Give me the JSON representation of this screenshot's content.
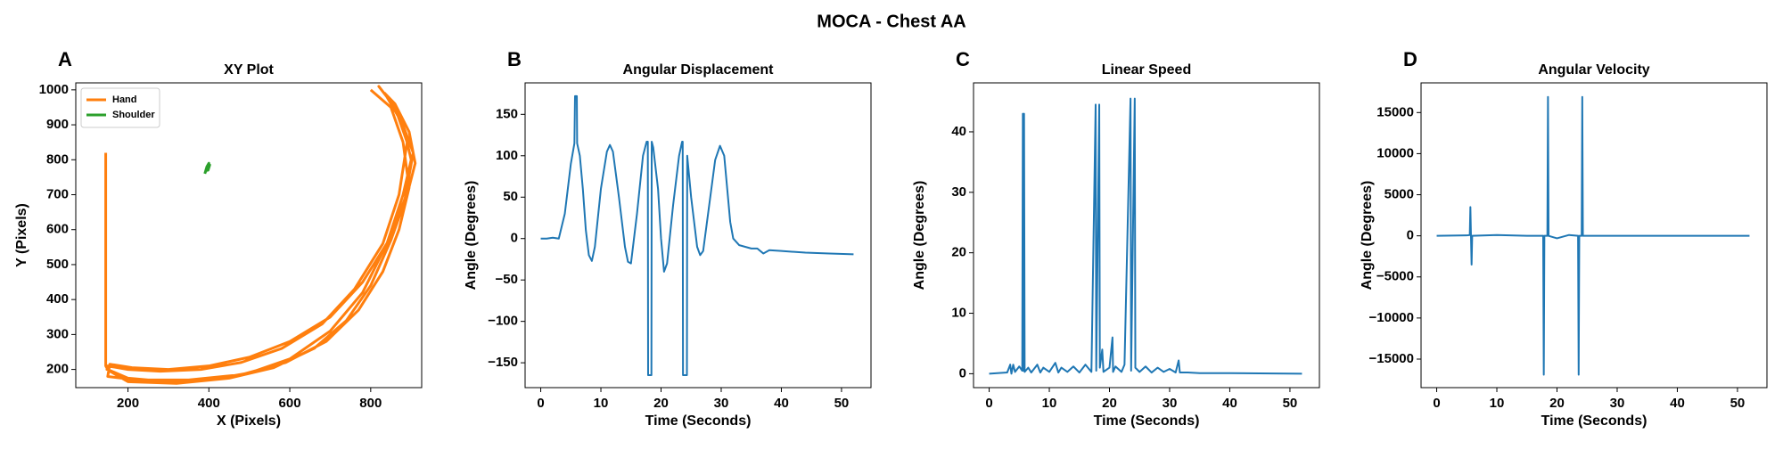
{
  "title": "MOCA - Chest AA",
  "chart_data": [
    {
      "type": "line",
      "panel_label": "A",
      "title": "XY Plot",
      "x_label": "X (Pixels)",
      "y_label": "Y (Pixels)",
      "xlim": [
        71,
        926
      ],
      "ylim": [
        148,
        1020
      ],
      "xticks": [
        200,
        400,
        600,
        800
      ],
      "yticks": [
        200,
        300,
        400,
        500,
        600,
        700,
        800,
        900,
        1000
      ],
      "legend": "upper left",
      "series": [
        {
          "name": "Hand",
          "color": "#ff7f0e",
          "x": [
            145,
            145,
            150,
            200,
            300,
            400,
            500,
            600,
            700,
            780,
            840,
            880,
            900,
            880,
            840,
            820,
            860,
            890,
            870,
            830,
            760,
            680,
            580,
            480,
            380,
            280,
            200,
            150,
            148,
            200,
            320,
            450,
            560,
            660,
            740,
            800,
            850,
            890,
            910,
            895,
            860,
            835,
            870,
            905,
            885,
            845,
            780,
            700,
            600,
            500,
            400,
            300,
            210,
            155,
            150,
            220,
            350,
            480,
            590,
            690,
            770,
            830,
            870,
            895,
            880,
            850,
            800
          ],
          "values": [
            820,
            210,
            200,
            175,
            165,
            170,
            190,
            230,
            310,
            420,
            560,
            700,
            800,
            900,
            980,
            1010,
            950,
            850,
            700,
            560,
            430,
            330,
            260,
            220,
            200,
            195,
            200,
            210,
            200,
            165,
            160,
            175,
            205,
            260,
            340,
            440,
            570,
            700,
            790,
            880,
            960,
            990,
            930,
            820,
            690,
            570,
            450,
            350,
            280,
            235,
            210,
            200,
            205,
            215,
            180,
            170,
            170,
            185,
            220,
            280,
            370,
            480,
            600,
            720,
            850,
            950,
            1000
          ]
        },
        {
          "name": "Shoulder",
          "color": "#2ca02c",
          "x": [
            390,
            395,
            400,
            398,
            402,
            395,
            392
          ],
          "values": [
            760,
            780,
            790,
            770,
            785,
            775,
            765
          ]
        }
      ]
    },
    {
      "type": "line",
      "panel_label": "B",
      "title": "Angular Displacement",
      "x_label": "Time (Seconds)",
      "y_label": "Angle (Degrees)",
      "xlim": [
        -2.6,
        54.9
      ],
      "ylim": [
        -180,
        188
      ],
      "xticks": [
        0,
        10,
        20,
        30,
        40,
        50
      ],
      "yticks": [
        {
          "value": -150,
          "label": "−150"
        },
        {
          "value": -100,
          "label": "−100"
        },
        {
          "value": -50,
          "label": "−50"
        },
        0,
        50,
        100,
        150
      ],
      "series": [
        {
          "color": "#1f77b4",
          "x": [
            0,
            1,
            2,
            3,
            4,
            5,
            5.6,
            5.7,
            6.0,
            6.05,
            6.5,
            7,
            7.5,
            8,
            8.5,
            9,
            10,
            11,
            11.5,
            12,
            13,
            14,
            14.5,
            15,
            16,
            17,
            17.6,
            17.8,
            17.85,
            18.4,
            18.45,
            18.7,
            19.5,
            20,
            20.5,
            21,
            22,
            23,
            23.5,
            23.6,
            23.65,
            24.3,
            24.35,
            25,
            26,
            26.5,
            27,
            28,
            29,
            29.8,
            30.5,
            31,
            31.5,
            32,
            33,
            34,
            35,
            36,
            37,
            38,
            40,
            44,
            48,
            52
          ],
          "values": [
            0,
            0,
            1,
            0,
            30,
            90,
            115,
            172,
            172,
            115,
            100,
            60,
            10,
            -20,
            -27,
            -10,
            60,
            105,
            113,
            105,
            50,
            -10,
            -28,
            -30,
            30,
            100,
            117,
            117,
            -165,
            -165,
            117,
            110,
            60,
            0,
            -40,
            -30,
            40,
            100,
            117,
            117,
            -165,
            -165,
            100,
            50,
            -10,
            -20,
            -15,
            40,
            95,
            112,
            100,
            60,
            20,
            0,
            -8,
            -10,
            -12,
            -12,
            -18,
            -14,
            -15,
            -17,
            -18,
            -19
          ]
        }
      ]
    },
    {
      "type": "line",
      "panel_label": "C",
      "title": "Linear Speed",
      "x_label": "Time (Seconds)",
      "y_label": "Angle (Degrees)",
      "xlim": [
        -2.6,
        54.9
      ],
      "ylim": [
        -2.3,
        48.1
      ],
      "xticks": [
        0,
        10,
        20,
        30,
        40,
        50
      ],
      "yticks": [
        0,
        10,
        20,
        30,
        40
      ],
      "series": [
        {
          "color": "#1f77b4",
          "x": [
            0,
            3,
            3.5,
            3.7,
            4,
            4.3,
            5,
            5.5,
            5.6,
            5.7,
            5.8,
            5.9,
            6.5,
            7,
            8,
            8.5,
            9,
            10,
            11,
            11.5,
            12,
            13,
            14,
            15,
            16,
            17,
            17.7,
            17.8,
            18.3,
            18.4,
            18.8,
            19,
            20,
            20.5,
            20.6,
            21,
            22,
            22.5,
            23.5,
            23.6,
            24.2,
            24.3,
            25,
            26,
            27,
            28,
            29,
            30,
            31,
            31.5,
            31.7,
            33,
            35,
            40,
            52
          ],
          "values": [
            0,
            0.2,
            1.5,
            0,
            1.5,
            0.3,
            1.2,
            0.5,
            43,
            0.5,
            43,
            0.3,
            1,
            0.2,
            1.5,
            0.2,
            1,
            0.3,
            1.8,
            0.2,
            1,
            0.3,
            1.2,
            0.2,
            1.5,
            0.3,
            44.5,
            0.5,
            44.5,
            1,
            4,
            0.3,
            1,
            6,
            0.3,
            1.2,
            0.3,
            1.5,
            45.5,
            0.5,
            45.5,
            1,
            0.3,
            1.2,
            0.2,
            1,
            0.3,
            0.8,
            0.2,
            2.2,
            0.2,
            0.2,
            0.1,
            0.1,
            0
          ]
        }
      ]
    },
    {
      "type": "line",
      "panel_label": "D",
      "title": "Angular Velocity",
      "x_label": "Time (Seconds)",
      "y_label": "Angle (Degrees)",
      "xlim": [
        -2.6,
        54.9
      ],
      "ylim": [
        -18470,
        18610
      ],
      "xticks": [
        0,
        10,
        20,
        30,
        40,
        50
      ],
      "yticks": [
        {
          "value": -15000,
          "label": "−15000"
        },
        {
          "value": -10000,
          "label": "−10000"
        },
        {
          "value": -5000,
          "label": "−5000"
        },
        0,
        5000,
        10000,
        15000
      ],
      "series": [
        {
          "color": "#1f77b4",
          "x": [
            0,
            5,
            5.5,
            5.6,
            5.7,
            5.8,
            5.9,
            10,
            15,
            17.7,
            17.8,
            17.9,
            18.4,
            18.5,
            18.6,
            20,
            22,
            23.5,
            23.6,
            23.7,
            24.1,
            24.2,
            24.3,
            30,
            52
          ],
          "values": [
            0,
            50,
            100,
            3500,
            -100,
            -3500,
            0,
            100,
            0,
            0,
            -16900,
            0,
            0,
            16900,
            0,
            -300,
            100,
            0,
            -16900,
            0,
            0,
            16900,
            0,
            0,
            0
          ]
        }
      ]
    }
  ]
}
